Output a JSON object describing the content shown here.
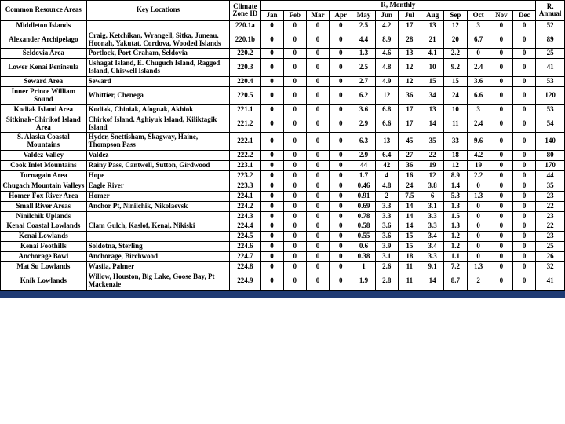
{
  "headers": {
    "area": "Common Resource Areas",
    "loc": "Key Locations",
    "zone": "Climate Zone ID",
    "monthly": "R, Monthly",
    "annual": "R, Annual",
    "months": [
      "Jan",
      "Feb",
      "Mar",
      "Apr",
      "May",
      "Jun",
      "Jul",
      "Aug",
      "Sep",
      "Oct",
      "Nov",
      "Dec"
    ]
  },
  "rows": [
    {
      "area": "Middleton Islands",
      "loc": "",
      "zone": "220.1a",
      "m": [
        "0",
        "0",
        "0",
        "0",
        "2.5",
        "4.2",
        "17",
        "13",
        "12",
        "3",
        "0",
        "0"
      ],
      "ann": "52"
    },
    {
      "area": "Alexander Archipelago",
      "loc": "Craig, Ketchikan, Wrangell, Sitka, Juneau, Hoonah, Yakutat, Cordova, Wooded Islands",
      "zone": "220.1b",
      "m": [
        "0",
        "0",
        "0",
        "0",
        "4.4",
        "8.9",
        "28",
        "21",
        "20",
        "6.7",
        "0",
        "0"
      ],
      "ann": "89"
    },
    {
      "area": "Seldovia Area",
      "loc": "Portlock, Port Graham, Seldovia",
      "zone": "220.2",
      "m": [
        "0",
        "0",
        "0",
        "0",
        "1.3",
        "4.6",
        "13",
        "4.1",
        "2.2",
        "0",
        "0",
        "0"
      ],
      "ann": "25"
    },
    {
      "area": "Lower Kenai Peninsula",
      "loc": "Ushagat Island, E. Chuguch Island, Ragged Island, Chiswell Islands",
      "zone": "220.3",
      "m": [
        "0",
        "0",
        "0",
        "0",
        "2.5",
        "4.8",
        "12",
        "10",
        "9.2",
        "2.4",
        "0",
        "0"
      ],
      "ann": "41"
    },
    {
      "area": "Seward Area",
      "loc": "Seward",
      "zone": "220.4",
      "m": [
        "0",
        "0",
        "0",
        "0",
        "2.7",
        "4.9",
        "12",
        "15",
        "15",
        "3.6",
        "0",
        "0"
      ],
      "ann": "53"
    },
    {
      "area": "Inner Prince William Sound",
      "loc": "Whittier, Chenega",
      "zone": "220.5",
      "m": [
        "0",
        "0",
        "0",
        "0",
        "6.2",
        "12",
        "36",
        "34",
        "24",
        "6.6",
        "0",
        "0"
      ],
      "ann": "120"
    },
    {
      "area": "Kodiak Island Area",
      "loc": "Kodiak, Chiniak, Afognak, Akhiok",
      "zone": "221.1",
      "m": [
        "0",
        "0",
        "0",
        "0",
        "3.6",
        "6.8",
        "17",
        "13",
        "10",
        "3",
        "0",
        "0"
      ],
      "ann": "53"
    },
    {
      "area": "Sitkinak-Chirikof Island Area",
      "loc": "Chirkof Island, Aghiyuk Island, Kiliktagik Island",
      "zone": "221.2",
      "m": [
        "0",
        "0",
        "0",
        "0",
        "2.9",
        "6.6",
        "17",
        "14",
        "11",
        "2.4",
        "0",
        "0"
      ],
      "ann": "54"
    },
    {
      "area": "S. Alaska Coastal Mountains",
      "loc": "Hyder, Snettisham, Skagway, Haine, Thompson Pass",
      "zone": "222.1",
      "m": [
        "0",
        "0",
        "0",
        "0",
        "6.3",
        "13",
        "45",
        "35",
        "33",
        "9.6",
        "0",
        "0"
      ],
      "ann": "140"
    },
    {
      "area": "Valdez Valley",
      "loc": "Valdez",
      "zone": "222.2",
      "m": [
        "0",
        "0",
        "0",
        "0",
        "2.9",
        "6.4",
        "27",
        "22",
        "18",
        "4.2",
        "0",
        "0"
      ],
      "ann": "80"
    },
    {
      "area": "Cook Inlet Mountains",
      "loc": "Rainy Pass, Cantwell, Sutton, Girdwood",
      "zone": "223.1",
      "m": [
        "0",
        "0",
        "0",
        "0",
        "44",
        "42",
        "36",
        "19",
        "12",
        "19",
        "0",
        "0"
      ],
      "ann": "170"
    },
    {
      "area": "Turnagain Area",
      "loc": "Hope",
      "zone": "223.2",
      "m": [
        "0",
        "0",
        "0",
        "0",
        "1.7",
        "4",
        "16",
        "12",
        "8.9",
        "2.2",
        "0",
        "0"
      ],
      "ann": "44"
    },
    {
      "area": "Chugach Mountain Valleys",
      "loc": "Eagle River",
      "zone": "223.3",
      "m": [
        "0",
        "0",
        "0",
        "0",
        "0.46",
        "4.8",
        "24",
        "3.8",
        "1.4",
        "0",
        "0",
        "0"
      ],
      "ann": "35"
    },
    {
      "area": "Homer-Fox River Area",
      "loc": "Homer",
      "zone": "224.1",
      "m": [
        "0",
        "0",
        "0",
        "0",
        "0.91",
        "2",
        "7.5",
        "6",
        "5.3",
        "1.3",
        "0",
        "0"
      ],
      "ann": "23"
    },
    {
      "area": "Small River Areas",
      "loc": "Anchor Pt, Ninilchik, Nikolaevsk",
      "zone": "224.2",
      "m": [
        "0",
        "0",
        "0",
        "0",
        "0.69",
        "3.3",
        "14",
        "3.1",
        "1.3",
        "0",
        "0",
        "0"
      ],
      "ann": "22"
    },
    {
      "area": "Ninilchik Uplands",
      "loc": "",
      "zone": "224.3",
      "m": [
        "0",
        "0",
        "0",
        "0",
        "0.78",
        "3.3",
        "14",
        "3.3",
        "1.5",
        "0",
        "0",
        "0"
      ],
      "ann": "23"
    },
    {
      "area": "Kenai Coastal Lowlands",
      "loc": "Clam Gulch, Kaslof, Kenai, Nikiski",
      "zone": "224.4",
      "m": [
        "0",
        "0",
        "0",
        "0",
        "0.58",
        "3.6",
        "14",
        "3.3",
        "1.3",
        "0",
        "0",
        "0"
      ],
      "ann": "22"
    },
    {
      "area": "Kenai Lowlands",
      "loc": "",
      "zone": "224.5",
      "m": [
        "0",
        "0",
        "0",
        "0",
        "0.55",
        "3.6",
        "15",
        "3.4",
        "1.2",
        "0",
        "0",
        "0"
      ],
      "ann": "23"
    },
    {
      "area": "Kenai Foothills",
      "loc": "Soldotna, Sterling",
      "zone": "224.6",
      "m": [
        "0",
        "0",
        "0",
        "0",
        "0.6",
        "3.9",
        "15",
        "3.4",
        "1.2",
        "0",
        "0",
        "0"
      ],
      "ann": "25"
    },
    {
      "area": "Anchorage Bowl",
      "loc": "Anchorage, Birchwood",
      "zone": "224.7",
      "m": [
        "0",
        "0",
        "0",
        "0",
        "0.38",
        "3.1",
        "18",
        "3.3",
        "1.1",
        "0",
        "0",
        "0"
      ],
      "ann": "26"
    },
    {
      "area": "Mat Su Lowlands",
      "loc": "Wasila, Palmer",
      "zone": "224.8",
      "m": [
        "0",
        "0",
        "0",
        "0",
        "1",
        "2.6",
        "11",
        "9.1",
        "7.2",
        "1.3",
        "0",
        "0"
      ],
      "ann": "32"
    },
    {
      "area": "Knik Lowlands",
      "loc": "Willow, Houston, Big Lake, Goose Bay, Pt Mackenzie",
      "zone": "224.9",
      "m": [
        "0",
        "0",
        "0",
        "0",
        "1.9",
        "2.8",
        "11",
        "14",
        "8.7",
        "2",
        "0",
        "0"
      ],
      "ann": "41"
    }
  ]
}
